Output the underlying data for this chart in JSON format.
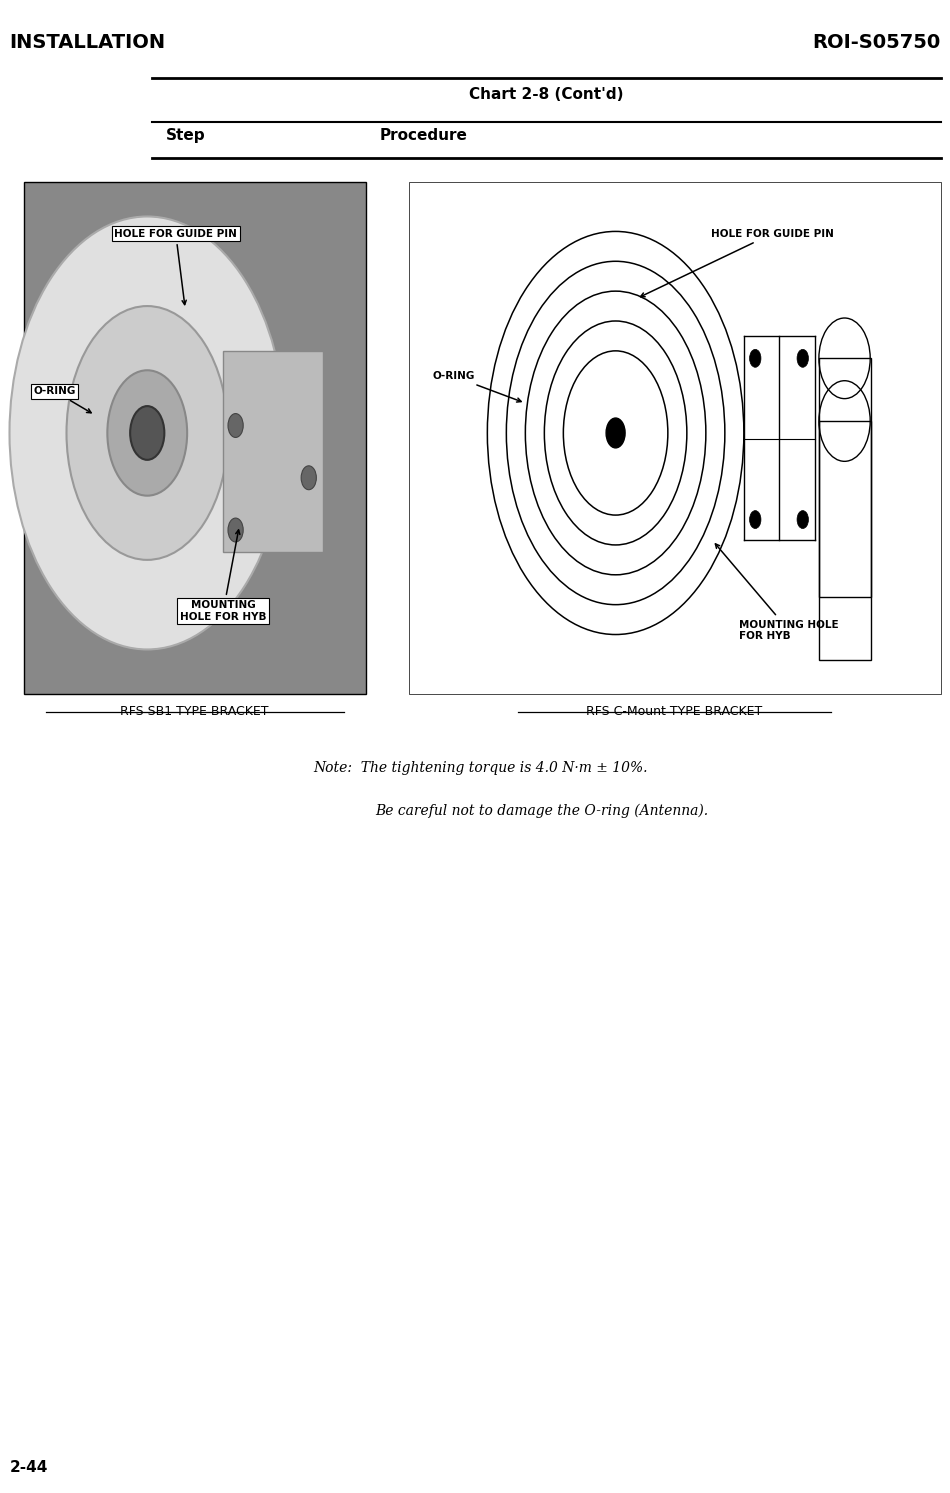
{
  "title_left": "INSTALLATION",
  "title_right": "ROI-S05750",
  "chart_title": "Chart 2-8 (Cont'd)",
  "step_label": "Step",
  "procedure_label": "Procedure",
  "note_line1": "Note:  The tightening torque is 4.0 N·m ± 10%.",
  "note_line2": "Be careful not to damage the O-ring (Antenna).",
  "caption_left": "RFS SB1 TYPE BRACKET",
  "caption_right": "RFS C-Mount TYPE BRACKET",
  "bg_color": "#ffffff",
  "text_color": "#000000",
  "page_number": "2-44"
}
